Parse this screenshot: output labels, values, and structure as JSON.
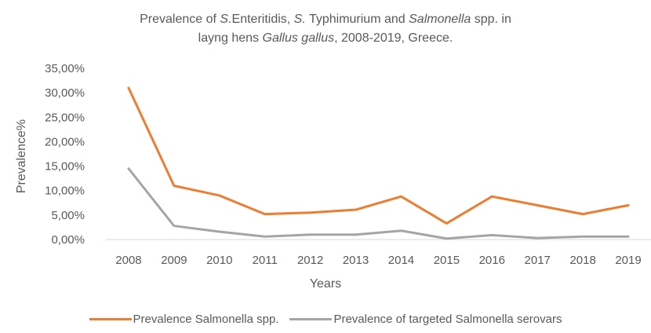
{
  "chart_data": {
    "type": "line",
    "title_parts_line1": [
      {
        "text": "Prevalence of ",
        "italic": false
      },
      {
        "text": "S.",
        "italic": true
      },
      {
        "text": "Enteritidis, ",
        "italic": false
      },
      {
        "text": "S.",
        "italic": true
      },
      {
        "text": " Typhimurium and ",
        "italic": false
      },
      {
        "text": "Salmonella",
        "italic": true
      },
      {
        "text": " spp. in",
        "italic": false
      }
    ],
    "title_parts_line2": [
      {
        "text": "layng hens ",
        "italic": false
      },
      {
        "text": "Gallus gallus",
        "italic": true
      },
      {
        "text": ", 2008-2019, Greece.",
        "italic": false
      }
    ],
    "xlabel": "Years",
    "ylabel": "Prevalence%",
    "categories": [
      "2008",
      "2009",
      "2010",
      "2011",
      "2012",
      "2013",
      "2014",
      "2015",
      "2016",
      "2017",
      "2018",
      "2019"
    ],
    "y_ticks": [
      "0,00%",
      "5,00%",
      "10,00%",
      "15,00%",
      "20,00%",
      "25,00%",
      "30,00%",
      "35,00%"
    ],
    "ylim": [
      0,
      35
    ],
    "grid": false,
    "legend_position": "bottom",
    "series": [
      {
        "name": "Prevalence Salmonella spp.",
        "color": "#ED7D31",
        "values": [
          31.0,
          11.0,
          9.0,
          5.2,
          5.5,
          6.1,
          8.8,
          3.3,
          8.8,
          7.0,
          5.2,
          7.0
        ]
      },
      {
        "name": "Prevalence of targeted Salmonella serovars",
        "color": "#A5A5A5",
        "values": [
          14.5,
          2.8,
          1.6,
          0.6,
          1.0,
          1.0,
          1.8,
          0.2,
          0.9,
          0.3,
          0.6,
          0.6
        ]
      }
    ]
  }
}
